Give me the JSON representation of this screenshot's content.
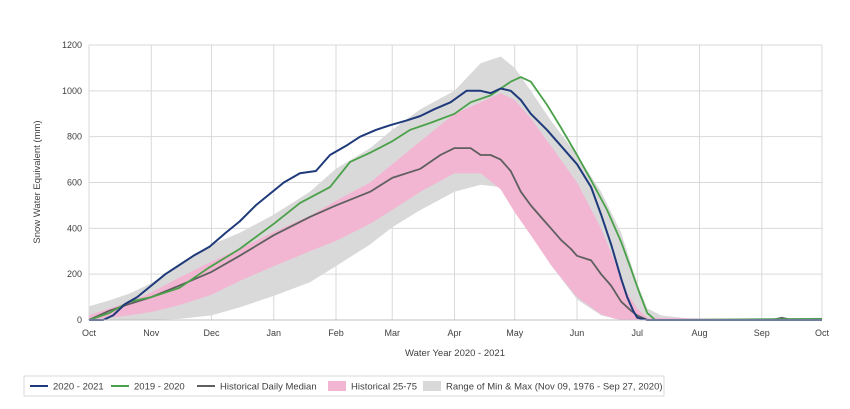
{
  "chart_data": {
    "type": "line",
    "title": "",
    "xlabel": "Water Year 2020 - 2021",
    "ylabel": "Snow Water Equivalent (mm)",
    "ylim": [
      0,
      1200
    ],
    "yticks": [
      0,
      200,
      400,
      600,
      800,
      1000,
      1200
    ],
    "xlim": [
      0,
      365
    ],
    "x_unit": "day of water year",
    "grid": true,
    "legend_position": "bottom",
    "xticks": [
      {
        "label": "Oct",
        "day": 0
      },
      {
        "label": "Nov",
        "day": 31
      },
      {
        "label": "Dec",
        "day": 61
      },
      {
        "label": "Jan",
        "day": 92
      },
      {
        "label": "Feb",
        "day": 123
      },
      {
        "label": "Mar",
        "day": 151
      },
      {
        "label": "Apr",
        "day": 182
      },
      {
        "label": "May",
        "day": 212
      },
      {
        "label": "Jun",
        "day": 243
      },
      {
        "label": "Jul",
        "day": 273
      },
      {
        "label": "Aug",
        "day": 304
      },
      {
        "label": "Sep",
        "day": 335
      },
      {
        "label": "Oct",
        "day": 365
      }
    ],
    "bands": [
      {
        "name": "Range of Min & Max (Nov 09, 1976 - Sep 27, 2020)",
        "color": "#d9d9d9",
        "x": [
          0,
          10,
          20,
          31,
          45,
          61,
          75,
          92,
          110,
          123,
          140,
          151,
          165,
          182,
          195,
          205,
          212,
          220,
          230,
          243,
          255,
          265,
          273,
          278,
          285,
          300,
          365
        ],
        "lower": [
          0,
          0,
          0,
          0,
          5,
          20,
          55,
          105,
          165,
          235,
          330,
          405,
          480,
          560,
          590,
          580,
          500,
          380,
          240,
          90,
          20,
          0,
          0,
          0,
          0,
          0,
          0
        ],
        "upper": [
          60,
          85,
          115,
          160,
          240,
          330,
          380,
          460,
          560,
          660,
          750,
          830,
          920,
          1000,
          1120,
          1150,
          1100,
          1000,
          870,
          720,
          560,
          380,
          160,
          50,
          20,
          5,
          10
        ]
      },
      {
        "name": "Historical 25-75",
        "color": "#f2b6d3",
        "x": [
          0,
          10,
          20,
          31,
          45,
          61,
          75,
          92,
          110,
          123,
          140,
          151,
          165,
          182,
          195,
          205,
          212,
          220,
          230,
          243,
          255,
          262,
          268,
          273,
          278,
          365
        ],
        "lower": [
          0,
          10,
          20,
          35,
          65,
          110,
          170,
          235,
          300,
          345,
          420,
          480,
          560,
          640,
          640,
          570,
          470,
          370,
          240,
          100,
          25,
          5,
          0,
          0,
          0,
          0
        ],
        "upper": [
          20,
          50,
          80,
          120,
          185,
          255,
          310,
          385,
          455,
          520,
          600,
          680,
          780,
          900,
          950,
          990,
          960,
          880,
          760,
          600,
          400,
          250,
          120,
          50,
          10,
          0
        ]
      }
    ],
    "series": [
      {
        "name": "2020 - 2021",
        "color": "#1f3a7a",
        "x": [
          0,
          7,
          12,
          18,
          24,
          31,
          38,
          45,
          52,
          60,
          68,
          75,
          83,
          90,
          97,
          105,
          113,
          120,
          128,
          135,
          143,
          150,
          158,
          165,
          172,
          180,
          188,
          195,
          200,
          205,
          210,
          215,
          220,
          228,
          235,
          243,
          250,
          255,
          260,
          265,
          268,
          271,
          273,
          278,
          365
        ],
        "y": [
          0,
          0,
          20,
          70,
          100,
          150,
          200,
          240,
          280,
          320,
          380,
          430,
          500,
          550,
          600,
          640,
          650,
          720,
          760,
          800,
          830,
          850,
          870,
          890,
          920,
          950,
          1000,
          1000,
          990,
          1010,
          1000,
          960,
          900,
          830,
          760,
          680,
          580,
          460,
          330,
          180,
          100,
          40,
          10,
          0,
          0
        ]
      },
      {
        "name": "2019 - 2020",
        "color": "#4aa14a",
        "x": [
          0,
          10,
          20,
          31,
          45,
          60,
          75,
          92,
          105,
          120,
          130,
          140,
          151,
          160,
          170,
          182,
          190,
          200,
          210,
          215,
          220,
          228,
          235,
          243,
          250,
          258,
          265,
          270,
          274,
          278,
          282,
          365
        ],
        "y": [
          0,
          30,
          80,
          100,
          140,
          230,
          310,
          420,
          510,
          580,
          690,
          730,
          780,
          830,
          860,
          900,
          950,
          980,
          1040,
          1060,
          1040,
          940,
          840,
          720,
          610,
          480,
          340,
          220,
          120,
          30,
          0,
          5
        ]
      },
      {
        "name": "Historical Daily Median",
        "color": "#5f5f5f",
        "x": [
          0,
          10,
          20,
          31,
          45,
          61,
          75,
          92,
          110,
          123,
          140,
          151,
          165,
          175,
          182,
          190,
          195,
          200,
          205,
          210,
          215,
          220,
          225,
          230,
          235,
          240,
          243,
          250,
          255,
          260,
          265,
          270,
          273,
          278,
          340,
          345,
          350,
          365
        ],
        "y": [
          0,
          40,
          70,
          100,
          150,
          210,
          280,
          370,
          450,
          500,
          560,
          620,
          660,
          720,
          750,
          750,
          720,
          720,
          700,
          650,
          560,
          500,
          450,
          400,
          350,
          310,
          280,
          260,
          200,
          150,
          80,
          40,
          20,
          0,
          0,
          10,
          0,
          5
        ]
      }
    ],
    "legend": [
      {
        "label": "2020 - 2021",
        "kind": "line",
        "color": "#1f3a7a"
      },
      {
        "label": "2019 - 2020",
        "kind": "line",
        "color": "#4aa14a"
      },
      {
        "label": "Historical Daily Median",
        "kind": "line",
        "color": "#5f5f5f"
      },
      {
        "label": "Historical 25-75",
        "kind": "box",
        "color": "#f2b6d3"
      },
      {
        "label": "Range of Min & Max (Nov 09, 1976 - Sep 27, 2020)",
        "kind": "box",
        "color": "#d9d9d9"
      }
    ],
    "colors": {
      "gridline": "#d9d9d9",
      "axis": "#bfbfbf",
      "text": "#404040"
    }
  }
}
